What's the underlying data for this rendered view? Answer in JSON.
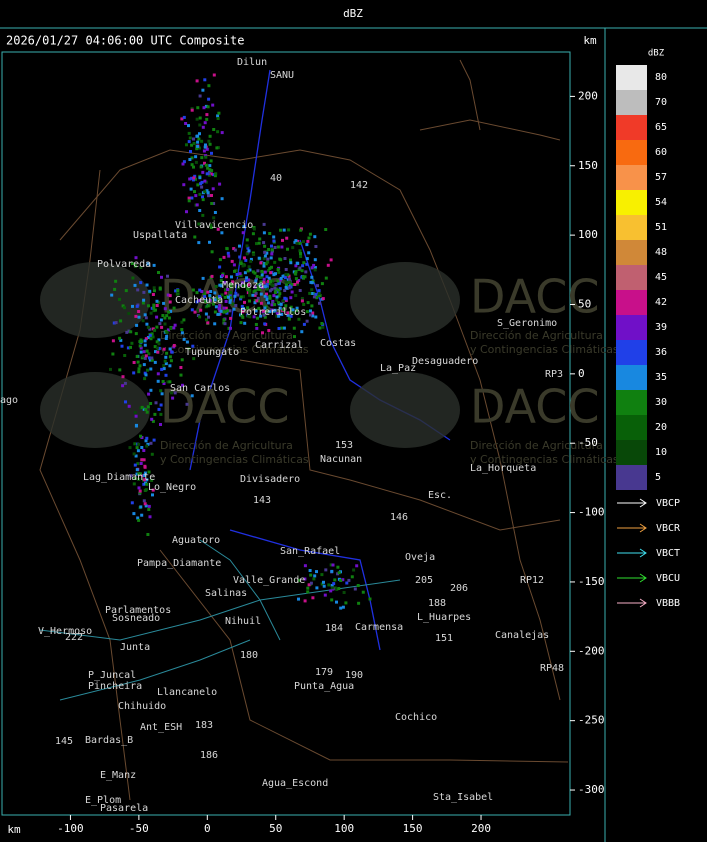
{
  "header": {
    "title": "dBZ"
  },
  "map": {
    "subtitle": "2026/01/27 04:06:00 UTC Composite",
    "x_unit": "km",
    "y_unit": "km",
    "xlim": [
      -150,
      265
    ],
    "ylim": [
      -318,
      232
    ],
    "xticks": [
      -100,
      -50,
      0,
      50,
      100,
      150,
      200
    ],
    "yticks": [
      200,
      150,
      100,
      50,
      0,
      -50,
      -100,
      -150,
      -200,
      -250,
      -300
    ],
    "watermark": {
      "logo": "DACC",
      "line1": "Dirección de Agricultura",
      "line2": "y Contingencias Climáticas"
    },
    "places": [
      "Dilun",
      "SANU",
      "Uspallata",
      "Polvareda",
      "Villavicencio",
      "Mendoza",
      "Cacheuta",
      "Potrerillos",
      "Carrizal",
      "Tupungato",
      "San Carlos",
      "Lag_Diamante",
      "Lo_Negro",
      "Divisadero",
      "Aguatoro",
      "Pampa_Diamante",
      "Sosneado",
      "Parlamentos",
      "Salinas",
      "Valle_Grande",
      "Nihuil",
      "V_Hermoso",
      "Junta",
      "P_Juncal",
      "Pincheira",
      "Chihuido",
      "Llancanelo",
      "Ant_ESH",
      "Bardas_B",
      "E_Manz",
      "E_Plom",
      "Pasarela",
      "Punta_Agua",
      "Agua_Escond",
      "Cochico",
      "Sta_Isabel",
      "Carmensa",
      "L_Huarpes",
      "Canalejas",
      "Oveja",
      "Nacunan",
      "La_Horqueta",
      "S_Geronimo",
      "Desaguadero",
      "La_Paz",
      "Costas",
      "San_Rafael",
      "Esc.",
      "142",
      "40",
      "153",
      "146",
      "143",
      "184",
      "180",
      "179",
      "190",
      "205",
      "206",
      "151",
      "188",
      "RP3",
      "RP12",
      "RP48",
      "145",
      "186",
      "183",
      "222",
      "ago"
    ]
  },
  "scale": {
    "title": "dBZ",
    "levels": [
      {
        "label": "80",
        "color": "#e8e8e8"
      },
      {
        "label": "70",
        "color": "#bdbdbd"
      },
      {
        "label": "65",
        "color": "#f03a28"
      },
      {
        "label": "60",
        "color": "#f86a10"
      },
      {
        "label": "57",
        "color": "#f8924a"
      },
      {
        "label": "54",
        "color": "#f8f000"
      },
      {
        "label": "51",
        "color": "#f8c030"
      },
      {
        "label": "48",
        "color": "#d08838"
      },
      {
        "label": "45",
        "color": "#c06070"
      },
      {
        "label": "42",
        "color": "#c8108a"
      },
      {
        "label": "39",
        "color": "#7010c8"
      },
      {
        "label": "36",
        "color": "#2040e8"
      },
      {
        "label": "35",
        "color": "#1888e0"
      },
      {
        "label": "30",
        "color": "#108010"
      },
      {
        "label": "20",
        "color": "#086008"
      },
      {
        "label": "10",
        "color": "#084808"
      },
      {
        "label": "5",
        "color": "#483890"
      }
    ]
  },
  "radars": [
    {
      "name": "VBCP",
      "color": "#ffffff"
    },
    {
      "name": "VBCR",
      "color": "#f0a040"
    },
    {
      "name": "VBCT",
      "color": "#40e0f0"
    },
    {
      "name": "VBCU",
      "color": "#30e030"
    },
    {
      "name": "VBBB",
      "color": "#f8b0c8"
    }
  ]
}
